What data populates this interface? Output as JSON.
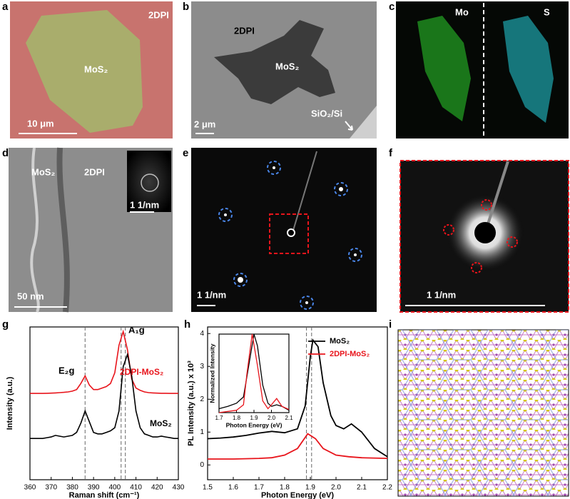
{
  "panels": [
    {
      "label": "a",
      "texts": [
        "2DPI",
        "MoS₂",
        "10 μm"
      ]
    },
    {
      "label": "b",
      "texts": [
        "2DPI",
        "MoS₂",
        "2 μm",
        "SiO₂/Si"
      ]
    },
    {
      "label": "c",
      "texts": [
        "Mo",
        "S"
      ]
    },
    {
      "label": "d",
      "texts": [
        "MoS₂",
        "2DPI",
        "1 1/nm",
        "50 nm"
      ]
    },
    {
      "label": "e",
      "texts": [
        "1 1/nm"
      ]
    },
    {
      "label": "f",
      "texts": [
        "1 1/nm"
      ]
    },
    {
      "label": "g",
      "x_label": "Raman shift (cm⁻¹)",
      "y_label": "Intensity (a.u.)",
      "xlim": [
        360,
        430
      ],
      "xticks": [
        360,
        370,
        380,
        390,
        400,
        410,
        420,
        430
      ],
      "dashed_x": [
        386,
        403,
        405
      ],
      "annotations": [
        "E₂g",
        "A₁g"
      ],
      "series": [
        {
          "name": "2DPI-MoS₂",
          "color": "#e8141b",
          "x": [
            360,
            362,
            364,
            366,
            368,
            370,
            372,
            374,
            376,
            378,
            380,
            382,
            384,
            386,
            388,
            390,
            392,
            394,
            396,
            398,
            400,
            402,
            404,
            406,
            408,
            410,
            412,
            414,
            416,
            418,
            420,
            422,
            424,
            426,
            428,
            430
          ],
          "values": [
            0.565,
            0.565,
            0.565,
            0.565,
            0.566,
            0.567,
            0.568,
            0.57,
            0.572,
            0.575,
            0.58,
            0.59,
            0.63,
            0.68,
            0.62,
            0.59,
            0.59,
            0.6,
            0.61,
            0.63,
            0.7,
            0.88,
            0.97,
            0.85,
            0.66,
            0.6,
            0.585,
            0.575,
            0.57,
            0.568,
            0.567,
            0.566,
            0.566,
            0.565,
            0.565,
            0.565
          ]
        },
        {
          "name": "MoS₂",
          "color": "#000000",
          "x": [
            360,
            362,
            364,
            366,
            368,
            370,
            372,
            374,
            376,
            378,
            380,
            382,
            384,
            386,
            388,
            390,
            392,
            394,
            396,
            398,
            400,
            402,
            404,
            406,
            408,
            410,
            412,
            414,
            416,
            418,
            420,
            422,
            424,
            426,
            428,
            430
          ],
          "values": [
            0.27,
            0.27,
            0.27,
            0.27,
            0.275,
            0.28,
            0.29,
            0.285,
            0.28,
            0.285,
            0.29,
            0.31,
            0.37,
            0.45,
            0.38,
            0.31,
            0.3,
            0.3,
            0.31,
            0.32,
            0.34,
            0.45,
            0.74,
            0.82,
            0.68,
            0.45,
            0.34,
            0.3,
            0.29,
            0.28,
            0.28,
            0.285,
            0.28,
            0.275,
            0.27,
            0.27
          ]
        }
      ]
    },
    {
      "label": "h",
      "x_label": "Photon Energy (eV)",
      "y_label": "PL Intensity (a.u.) x 10³",
      "xlim": [
        1.5,
        2.2
      ],
      "xticks": [
        1.5,
        1.6,
        1.7,
        1.8,
        1.9,
        {
          "value": 2,
          "label": "2.0"
        },
        2.1,
        2.2
      ],
      "ylim": [
        -0.45,
        4.2
      ],
      "yticks": [
        0,
        1,
        2,
        3,
        4
      ],
      "dashed_x": [
        1.885,
        1.905
      ],
      "series": [
        {
          "name": "MoS₂",
          "color": "#000000",
          "x": [
            1.5,
            1.55,
            1.6,
            1.65,
            1.7,
            1.75,
            1.8,
            1.85,
            1.88,
            1.9,
            1.91,
            1.93,
            1.95,
            1.98,
            2.0,
            2.03,
            2.06,
            2.1,
            2.15,
            2.2
          ],
          "values": [
            0.8,
            0.82,
            0.85,
            0.9,
            0.97,
            1.02,
            0.98,
            1.1,
            1.8,
            3.3,
            3.8,
            3.6,
            2.5,
            1.5,
            1.2,
            1.1,
            1.25,
            1.0,
            0.5,
            0.25
          ]
        },
        {
          "name": "2DPI-MoS₂",
          "color": "#e8141b",
          "x": [
            1.5,
            1.6,
            1.7,
            1.75,
            1.8,
            1.85,
            1.89,
            1.92,
            1.95,
            2.0,
            2.05,
            2.1,
            2.2
          ],
          "values": [
            0.18,
            0.18,
            0.2,
            0.22,
            0.3,
            0.5,
            0.95,
            0.8,
            0.5,
            0.3,
            0.25,
            0.22,
            0.2
          ]
        }
      ],
      "inset": {
        "x_label": "Photon Energy (eV)",
        "y_label": "Normalized Intensity",
        "xlim": [
          1.7,
          2.1
        ],
        "xticks": [
          1.7,
          1.8,
          1.9,
          {
            "value": 2,
            "label": "2.0"
          },
          2.1
        ],
        "series": [
          {
            "color": "#000000",
            "x": [
              1.7,
              1.75,
              1.8,
              1.84,
              1.87,
              1.9,
              1.92,
              1.95,
              1.98,
              2.0,
              2.03,
              2.06,
              2.1
            ],
            "values": [
              0.05,
              0.08,
              0.12,
              0.2,
              0.6,
              1.0,
              0.85,
              0.35,
              0.12,
              0.08,
              0.1,
              0.08,
              0.03
            ]
          },
          {
            "color": "#e8141b",
            "x": [
              1.7,
              1.8,
              1.84,
              1.86,
              1.89,
              1.92,
              1.95,
              1.98,
              2.0,
              2.03,
              2.06,
              2.1
            ],
            "values": [
              0.0,
              0.03,
              0.1,
              0.5,
              1.0,
              0.6,
              0.15,
              0.05,
              0.1,
              0.18,
              0.08,
              0.04
            ]
          }
        ]
      }
    },
    {
      "label": "i"
    }
  ]
}
